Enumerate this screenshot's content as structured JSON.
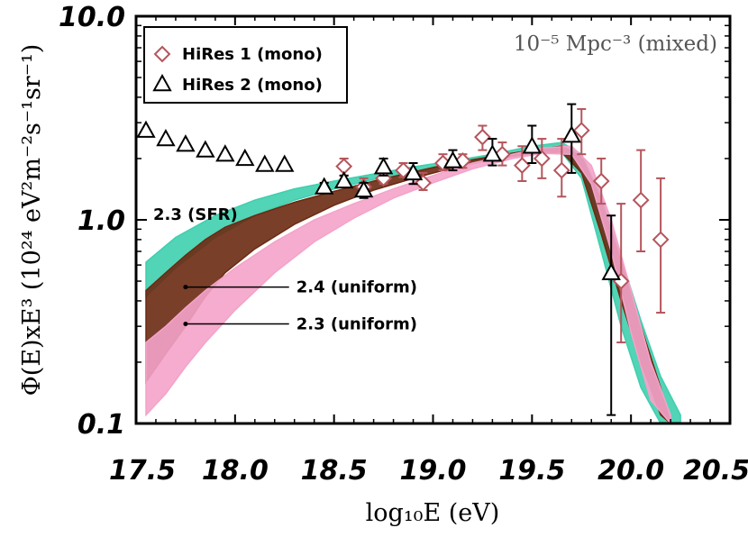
{
  "chart_data": {
    "type": "scatter",
    "xlabel": "log₁₀E (eV)",
    "ylabel": "Φ(E)xE³ (10²⁴ eV²m⁻²s⁻¹sr⁻¹)",
    "xlim": [
      17.5,
      20.5
    ],
    "ylim": [
      0.1,
      10.0
    ],
    "yscale": "log",
    "x_ticks": [
      "17.5",
      "18.0",
      "18.5",
      "19.0",
      "19.5",
      "20.0",
      "20.5"
    ],
    "y_ticks": [
      {
        "value": 10,
        "label": "10.0"
      },
      {
        "value": 1,
        "label": "1.0"
      },
      {
        "value": 0.1,
        "label": "0.1"
      }
    ],
    "corner_label": "10⁻⁵ Mpc⁻³ (mixed)",
    "legend": [
      {
        "label": "HiRes 1 (mono)",
        "marker": "diamond",
        "color": "#b5555c"
      },
      {
        "label": "HiRes 2 (mono)",
        "marker": "triangle",
        "color": "#000000"
      }
    ],
    "series": [
      {
        "name": "HiRes 1 (mono)",
        "marker": "diamond",
        "color": "#b5555c",
        "points": [
          {
            "x": 18.55,
            "y": 1.83,
            "lo": 1.65,
            "hi": 2.0
          },
          {
            "x": 18.65,
            "y": 1.45,
            "lo": 1.35,
            "hi": 1.6
          },
          {
            "x": 18.75,
            "y": 1.6,
            "lo": 1.5,
            "hi": 1.75
          },
          {
            "x": 18.85,
            "y": 1.75,
            "lo": 1.62,
            "hi": 1.9
          },
          {
            "x": 18.95,
            "y": 1.52,
            "lo": 1.4,
            "hi": 1.7
          },
          {
            "x": 19.05,
            "y": 1.9,
            "lo": 1.75,
            "hi": 2.1
          },
          {
            "x": 19.15,
            "y": 1.95,
            "lo": 1.8,
            "hi": 2.1
          },
          {
            "x": 19.25,
            "y": 2.55,
            "lo": 2.2,
            "hi": 2.9
          },
          {
            "x": 19.35,
            "y": 2.1,
            "lo": 1.85,
            "hi": 2.4
          },
          {
            "x": 19.45,
            "y": 1.85,
            "lo": 1.55,
            "hi": 2.3
          },
          {
            "x": 19.55,
            "y": 2.0,
            "lo": 1.6,
            "hi": 2.5
          },
          {
            "x": 19.65,
            "y": 1.75,
            "lo": 1.3,
            "hi": 2.5
          },
          {
            "x": 19.75,
            "y": 2.75,
            "lo": 2.1,
            "hi": 3.5
          },
          {
            "x": 19.85,
            "y": 1.55,
            "lo": 1.2,
            "hi": 2.0
          },
          {
            "x": 19.95,
            "y": 0.5,
            "lo": 0.25,
            "hi": 1.2
          },
          {
            "x": 20.05,
            "y": 1.25,
            "lo": 0.7,
            "hi": 2.2
          },
          {
            "x": 20.15,
            "y": 0.8,
            "lo": 0.35,
            "hi": 1.6
          }
        ]
      },
      {
        "name": "HiRes 2 (mono)",
        "marker": "triangle",
        "color": "#000000",
        "points": [
          {
            "x": 17.55,
            "y": 2.75
          },
          {
            "x": 17.65,
            "y": 2.5
          },
          {
            "x": 17.75,
            "y": 2.35
          },
          {
            "x": 17.85,
            "y": 2.2
          },
          {
            "x": 17.95,
            "y": 2.1
          },
          {
            "x": 18.05,
            "y": 2.0
          },
          {
            "x": 18.15,
            "y": 1.87
          },
          {
            "x": 18.25,
            "y": 1.87
          },
          {
            "x": 18.45,
            "y": 1.45,
            "lo": 1.38,
            "hi": 1.52
          },
          {
            "x": 18.55,
            "y": 1.55,
            "lo": 1.45,
            "hi": 1.65
          },
          {
            "x": 18.65,
            "y": 1.4,
            "lo": 1.28,
            "hi": 1.52
          },
          {
            "x": 18.75,
            "y": 1.82,
            "lo": 1.65,
            "hi": 2.0
          },
          {
            "x": 18.9,
            "y": 1.7,
            "lo": 1.5,
            "hi": 1.9
          },
          {
            "x": 19.1,
            "y": 1.95,
            "lo": 1.75,
            "hi": 2.2
          },
          {
            "x": 19.3,
            "y": 2.1,
            "lo": 1.85,
            "hi": 2.5
          },
          {
            "x": 19.5,
            "y": 2.3,
            "lo": 1.9,
            "hi": 2.9
          },
          {
            "x": 19.7,
            "y": 2.6,
            "lo": 1.7,
            "hi": 3.7
          },
          {
            "x": 19.9,
            "y": 0.55,
            "lo": 0.11,
            "hi": 1.05
          }
        ]
      }
    ],
    "model_curves": [
      {
        "name": "2.3 (SFR)",
        "color": "#3fcfae",
        "band": {
          "x": [
            17.55,
            17.7,
            17.9,
            18.1,
            18.3,
            18.5,
            18.7,
            18.9,
            19.1,
            19.3,
            19.5,
            19.65,
            19.75,
            19.85,
            19.95,
            20.05,
            20.15,
            20.25
          ],
          "upper": [
            0.62,
            0.82,
            1.05,
            1.25,
            1.42,
            1.55,
            1.68,
            1.82,
            1.95,
            2.1,
            2.3,
            2.4,
            2.1,
            1.3,
            0.65,
            0.32,
            0.17,
            0.11
          ],
          "lower": [
            0.42,
            0.58,
            0.82,
            1.05,
            1.25,
            1.42,
            1.58,
            1.72,
            1.88,
            2.02,
            2.15,
            2.15,
            1.6,
            0.7,
            0.3,
            0.15,
            0.1,
            0.1
          ]
        }
      },
      {
        "name": "2.4 (uniform)",
        "color": "#6b2a12",
        "band": {
          "x": [
            17.55,
            17.65,
            17.75,
            17.85,
            17.95,
            18.1,
            18.3,
            18.5,
            18.7,
            18.9,
            19.1,
            19.3,
            19.5,
            19.65,
            19.75,
            19.85,
            19.95,
            20.05,
            20.15,
            20.2
          ],
          "upper": [
            0.45,
            0.55,
            0.67,
            0.8,
            0.92,
            1.05,
            1.22,
            1.38,
            1.55,
            1.72,
            1.9,
            2.05,
            2.2,
            2.3,
            2.05,
            1.25,
            0.62,
            0.3,
            0.15,
            0.1
          ],
          "lower": [
            0.16,
            0.22,
            0.3,
            0.42,
            0.55,
            0.72,
            0.95,
            1.18,
            1.4,
            1.6,
            1.8,
            1.98,
            2.12,
            2.15,
            1.7,
            0.85,
            0.4,
            0.2,
            0.11,
            0.1
          ]
        }
      },
      {
        "name": "2.3 (uniform)",
        "color": "#f4a3c9",
        "band": {
          "x": [
            17.55,
            17.65,
            17.75,
            17.85,
            18.0,
            18.2,
            18.4,
            18.6,
            18.8,
            19.0,
            19.2,
            19.4,
            19.55,
            19.7,
            19.8,
            19.9,
            20.0,
            20.1,
            20.2
          ],
          "upper": [
            0.25,
            0.3,
            0.37,
            0.45,
            0.58,
            0.78,
            1.0,
            1.2,
            1.42,
            1.65,
            1.9,
            2.1,
            2.25,
            2.3,
            1.85,
            1.0,
            0.45,
            0.2,
            0.11
          ],
          "lower": [
            0.11,
            0.14,
            0.19,
            0.25,
            0.36,
            0.55,
            0.78,
            1.02,
            1.28,
            1.52,
            1.78,
            2.0,
            2.12,
            2.1,
            1.5,
            0.7,
            0.28,
            0.13,
            0.1
          ]
        }
      }
    ],
    "annotations": [
      {
        "text": "2.3 (SFR)",
        "x": 17.55,
        "y": 1.0
      },
      {
        "text": "2.4 (uniform)",
        "x": 18.3,
        "y": 0.44,
        "pointer_x": 17.75
      },
      {
        "text": "2.3 (uniform)",
        "x": 18.3,
        "y": 0.29,
        "pointer_x": 17.75
      }
    ]
  }
}
